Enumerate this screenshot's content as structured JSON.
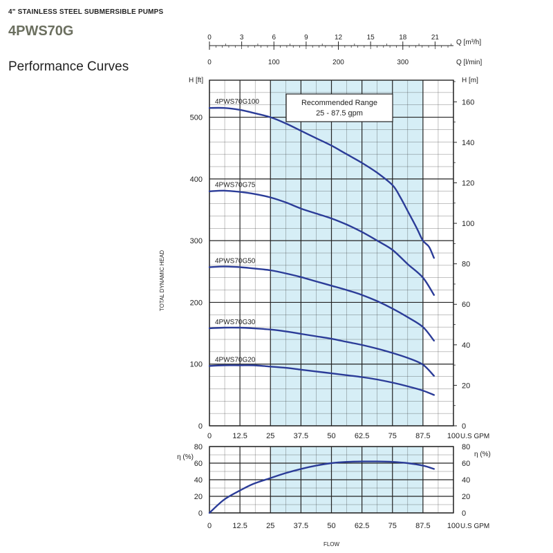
{
  "header": {
    "subtitle": "4\" STAINLESS STEEL SUBMERSIBLE PUMPS",
    "model": "4PWS70G",
    "section": "Performance Curves"
  },
  "colors": {
    "curve": "#2b3c98",
    "band": "#d6eef6",
    "grid": "#222222"
  },
  "chart_data": [
    {
      "type": "line",
      "title": "",
      "xlabel": "FLOW",
      "ylabel": "TOTAL DYNAMIC HEAD",
      "x_unit": "U.S GPM",
      "y_left_unit": "H [ft]",
      "y_right_unit": "H [m]",
      "top_axis_m3h_unit": "Q [m³/h]",
      "top_axis_lmin_unit": "Q [l/min]",
      "xlim": [
        0,
        100
      ],
      "ylim": [
        0,
        560
      ],
      "x_ticks": [
        "0",
        "12.5",
        "25",
        "37.5",
        "50",
        "62.5",
        "75",
        "87.5",
        "100"
      ],
      "y_ticks": [
        "0",
        "100",
        "200",
        "300",
        "400",
        "500"
      ],
      "y_right_ticks": [
        "0",
        "20",
        "40",
        "60",
        "80",
        "100",
        "120",
        "140",
        "160"
      ],
      "top_m3h_ticks": [
        "0",
        "3",
        "6",
        "9",
        "12",
        "15",
        "18",
        "21"
      ],
      "top_lmin_ticks": [
        "0",
        "100",
        "200",
        "300"
      ],
      "grid": true,
      "recommended_range": {
        "label_line1": "Recommended Range",
        "label_line2": "25 - 87.5 gpm",
        "x_start": 25,
        "x_end": 87.5
      },
      "series": [
        {
          "name": "4PWS70G100",
          "x": [
            0,
            6,
            12.5,
            18,
            25,
            31.25,
            37.5,
            43.75,
            50,
            56.25,
            62.5,
            68.75,
            75,
            78,
            81.25,
            85,
            87.5,
            90,
            92
          ],
          "y": [
            515,
            515,
            512,
            507,
            500,
            490,
            478,
            466,
            454,
            440,
            426,
            410,
            390,
            372,
            348,
            320,
            300,
            290,
            272
          ]
        },
        {
          "name": "4PWS70G75",
          "x": [
            0,
            6,
            12.5,
            18,
            25,
            31.25,
            37.5,
            43.75,
            50,
            56.25,
            62.5,
            68.75,
            75,
            81.25,
            87.5,
            92
          ],
          "y": [
            380,
            381,
            379,
            376,
            370,
            362,
            352,
            344,
            336,
            326,
            314,
            300,
            285,
            262,
            240,
            212
          ]
        },
        {
          "name": "4PWS70G50",
          "x": [
            0,
            6,
            12.5,
            18,
            25,
            31.25,
            37.5,
            43.75,
            50,
            56.25,
            62.5,
            68.75,
            75,
            81.25,
            87.5,
            92
          ],
          "y": [
            257,
            258,
            257,
            255,
            252,
            247,
            241,
            234,
            227,
            220,
            212,
            202,
            190,
            176,
            160,
            138
          ]
        },
        {
          "name": "4PWS70G30",
          "x": [
            0,
            6,
            12.5,
            18,
            25,
            31.25,
            37.5,
            43.75,
            50,
            56.25,
            62.5,
            68.75,
            75,
            81.25,
            87.5,
            92
          ],
          "y": [
            158,
            159,
            159,
            158,
            156,
            153,
            149,
            145,
            141,
            136,
            131,
            125,
            118,
            110,
            99,
            81
          ]
        },
        {
          "name": "4PWS70G20",
          "x": [
            0,
            6,
            12.5,
            18,
            25,
            31.25,
            37.5,
            43.75,
            50,
            56.25,
            62.5,
            68.75,
            75,
            81.25,
            87.5,
            92
          ],
          "y": [
            97,
            98,
            98,
            98,
            96,
            94,
            91,
            88,
            85,
            82,
            79,
            75,
            70,
            64,
            57,
            50
          ]
        }
      ]
    },
    {
      "type": "line",
      "title": "",
      "xlabel": "FLOW",
      "ylabel": "η (%)",
      "x_unit": "U.S GPM",
      "xlim": [
        0,
        100
      ],
      "ylim": [
        0,
        80
      ],
      "x_ticks": [
        "0",
        "12.5",
        "25",
        "37.5",
        "50",
        "62.5",
        "75",
        "87.5",
        "100"
      ],
      "y_ticks": [
        "0",
        "20",
        "40",
        "60",
        "80"
      ],
      "grid": true,
      "series": [
        {
          "name": "",
          "x": [
            0,
            6,
            12.5,
            18,
            25,
            31.25,
            37.5,
            43.75,
            50,
            56.25,
            62.5,
            68.75,
            75,
            81.25,
            87.5,
            92
          ],
          "y": [
            0,
            16,
            27,
            35,
            42,
            48,
            53,
            57,
            60,
            61.5,
            62,
            62,
            61.5,
            60,
            57,
            53
          ]
        }
      ]
    }
  ]
}
